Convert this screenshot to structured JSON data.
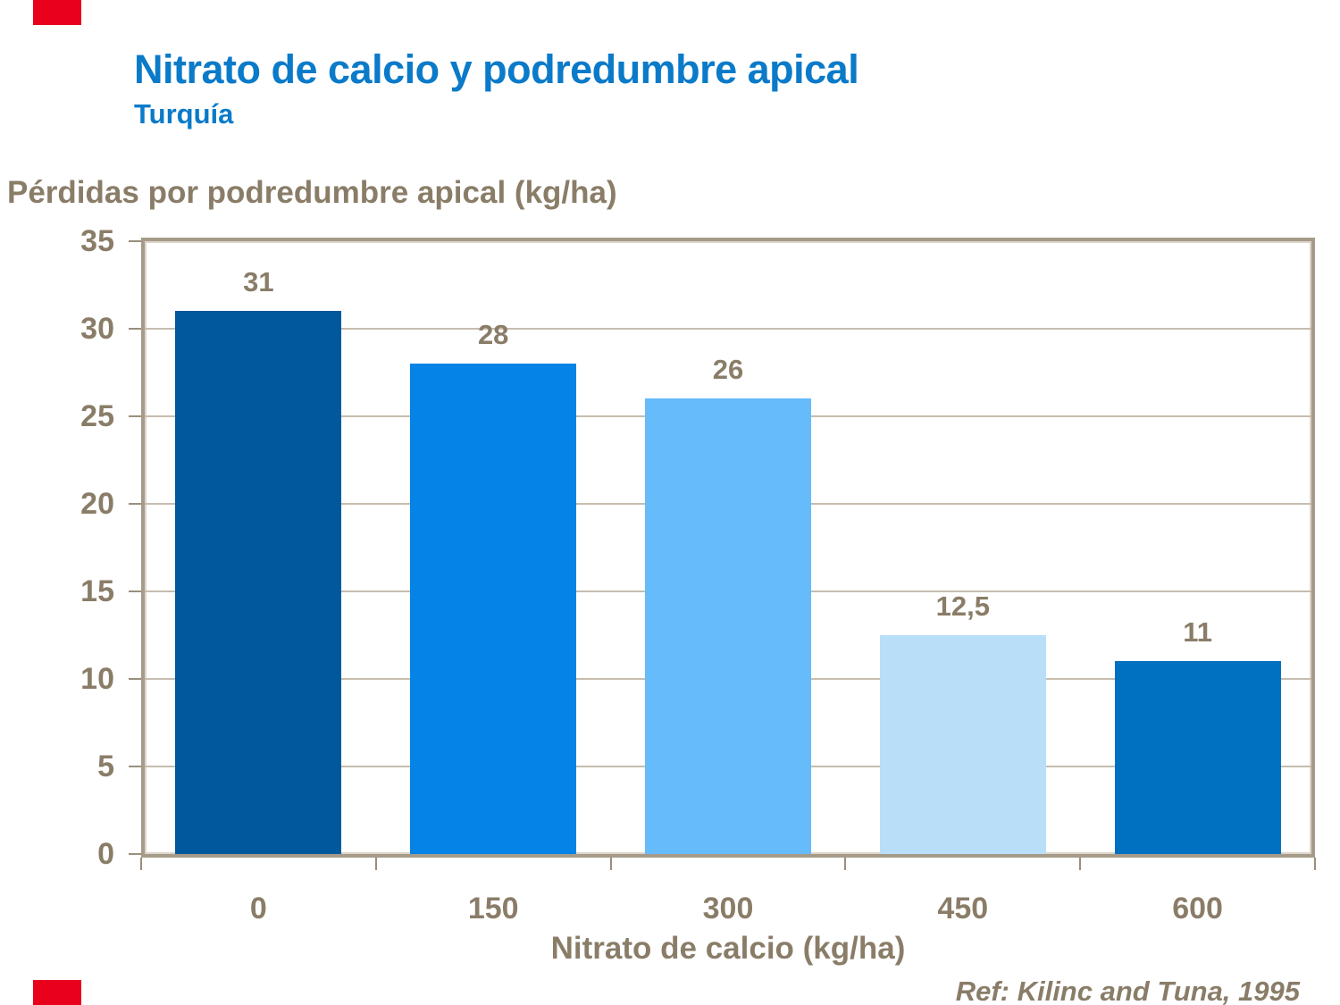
{
  "slide": {
    "title": "Nitrato de calcio y podredumbre apical",
    "subtitle": "Turquía",
    "reference": "Ref: Kilinc and Tuna, 1995",
    "accent_color": "#e8001c",
    "title_color": "#0a7ac9",
    "text_color": "#8a7d68"
  },
  "chart_data": {
    "type": "bar",
    "categories": [
      "0",
      "150",
      "300",
      "450",
      "600"
    ],
    "values": [
      31,
      28,
      26,
      12.5,
      11
    ],
    "value_labels": [
      "31",
      "28",
      "26",
      "12,5",
      "11"
    ],
    "bar_colors": [
      "#02589c",
      "#0583e6",
      "#66bbfb",
      "#b8def8",
      "#0070c0"
    ],
    "ylabel": "Pérdidas por podredumbre apical (kg/ha)",
    "xlabel": "Nitrato de calcio (kg/ha)",
    "ylim": [
      0,
      35
    ],
    "ytick_step": 5,
    "yticks": [
      "0",
      "5",
      "10",
      "15",
      "20",
      "25",
      "30",
      "35"
    ],
    "grid": true,
    "legend": "none",
    "gridline_color": "#c6bdae",
    "axis_color": "#a69b89",
    "label_color": "#8a7d68"
  }
}
